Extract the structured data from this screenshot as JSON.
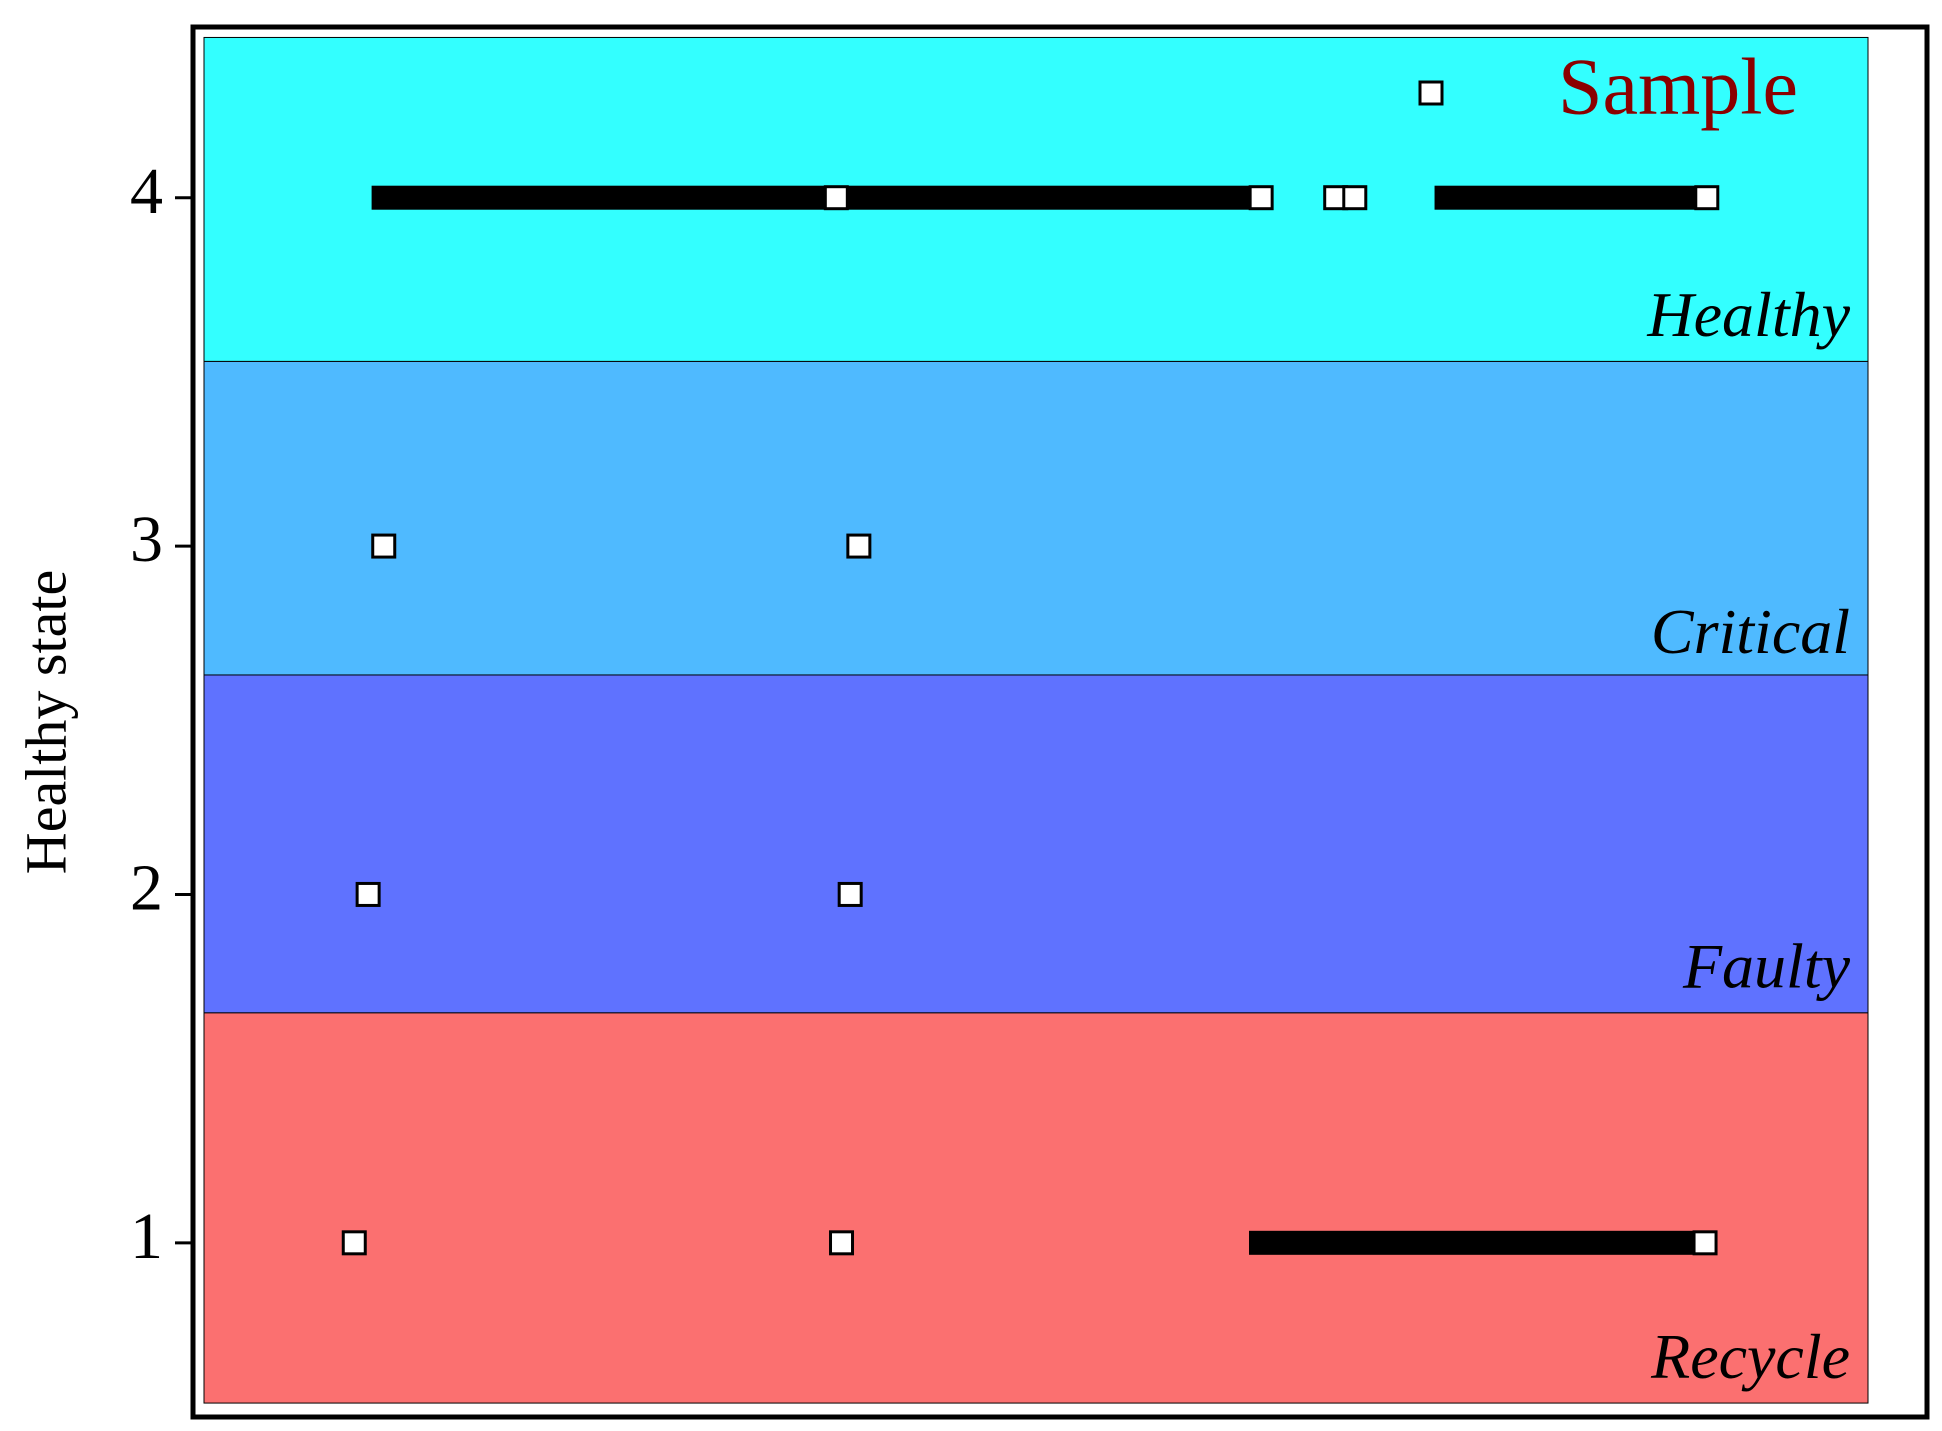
{
  "chart_data": {
    "type": "scatter",
    "y_label": "Healthy state",
    "ylim": [
      0.5,
      4.49
    ],
    "yticks": [
      1,
      2,
      3,
      4
    ],
    "xlim": [
      0,
      100
    ],
    "regions": [
      {
        "label": "Healthy",
        "ylim": [
          3.53,
          4.46
        ],
        "color": "#33ffff"
      },
      {
        "label": "Critical",
        "ylim": [
          2.62,
          3.53
        ],
        "color": "#4fbaff"
      },
      {
        "label": "Faulty",
        "ylim": [
          1.66,
          2.63
        ],
        "color": "#5f72ff"
      },
      {
        "label": "Recycle",
        "ylim": [
          0.54,
          1.66
        ],
        "color": "#fb7070"
      }
    ],
    "series": [
      {
        "name": "Sample",
        "color": "#8b0000",
        "x": [
          37.1,
          61.6,
          65.9,
          67.0,
          87.3,
          11.0,
          38.4,
          10.1,
          37.9,
          9.3,
          37.4,
          87.2
        ],
        "values": [
          4,
          4,
          4,
          4,
          4,
          3,
          3,
          2,
          2,
          1,
          1,
          1
        ]
      }
    ],
    "segments": [
      {
        "x": [
          10.3,
          62.2
        ],
        "y": 4
      },
      {
        "x": [
          71.6,
          87.9
        ],
        "y": 4
      },
      {
        "x": [
          60.9,
          87.8
        ],
        "y": 1
      }
    ]
  }
}
